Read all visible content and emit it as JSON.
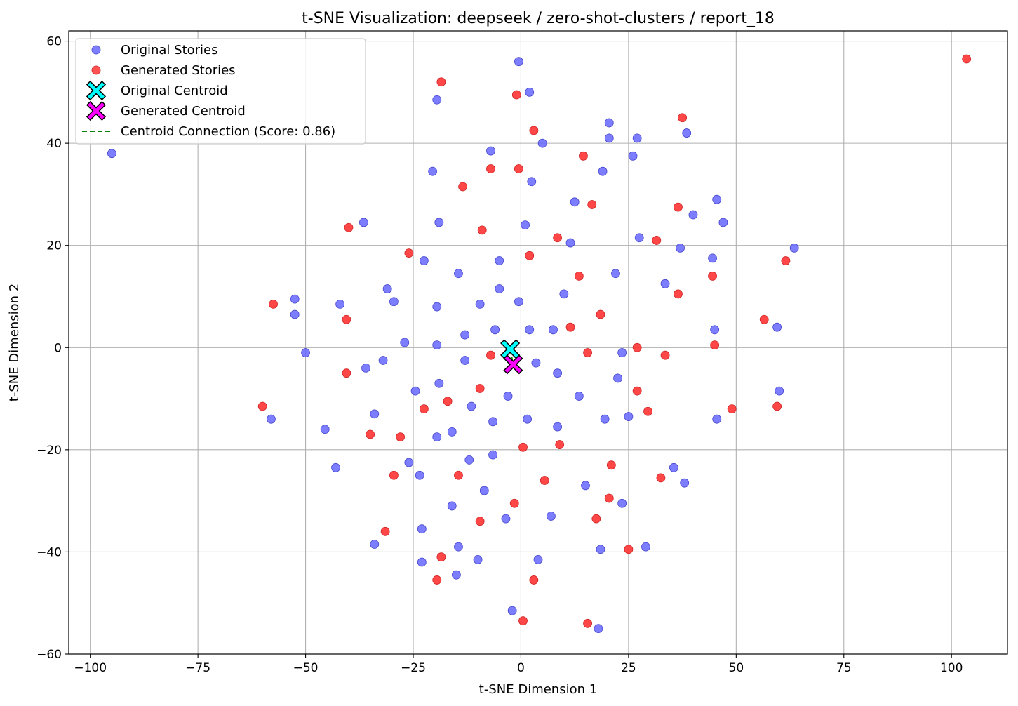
{
  "chart_data": {
    "type": "scatter",
    "title": "t-SNE Visualization: deepseek / zero-shot-clusters / report_18",
    "xlabel": "t-SNE Dimension 1",
    "ylabel": "t-SNE Dimension 2",
    "xlim": [
      -105,
      113
    ],
    "ylim": [
      -60,
      62
    ],
    "xticks": [
      -100,
      -75,
      -50,
      -25,
      0,
      25,
      50,
      75,
      100
    ],
    "yticks": [
      -60,
      -40,
      -20,
      0,
      20,
      40,
      60
    ],
    "xtick_labels": [
      "−100",
      "−75",
      "−50",
      "−25",
      "0",
      "25",
      "50",
      "75",
      "100"
    ],
    "ytick_labels": [
      "−60",
      "−40",
      "−20",
      "0",
      "20",
      "40",
      "60"
    ],
    "grid": true,
    "legend_position": "top-left",
    "colors": {
      "original": "#6666ff",
      "generated": "#ff3333",
      "original_centroid": "#00ffff",
      "generated_centroid": "#ff00ff",
      "connection": "#008000",
      "grid": "#b0b0b0"
    },
    "series": [
      {
        "name": "Original Stories",
        "marker": "circle",
        "points": [
          [
            -95,
            38
          ],
          [
            -0.5,
            56
          ],
          [
            2,
            50
          ],
          [
            -19.5,
            48.5
          ],
          [
            5,
            40
          ],
          [
            20.5,
            44
          ],
          [
            20.5,
            41
          ],
          [
            27,
            41
          ],
          [
            38.5,
            42
          ],
          [
            -7,
            38.5
          ],
          [
            26,
            37.5
          ],
          [
            -20.5,
            34.5
          ],
          [
            19,
            34.5
          ],
          [
            2.5,
            32.5
          ],
          [
            12.5,
            28.5
          ],
          [
            45.5,
            29
          ],
          [
            40,
            26
          ],
          [
            47,
            24.5
          ],
          [
            -36.5,
            24.5
          ],
          [
            -19,
            24.5
          ],
          [
            1,
            24
          ],
          [
            11.5,
            20.5
          ],
          [
            27.5,
            21.5
          ],
          [
            37,
            19.5
          ],
          [
            63.5,
            19.5
          ],
          [
            -22.5,
            17
          ],
          [
            -5,
            17
          ],
          [
            44.5,
            17.5
          ],
          [
            -14.5,
            14.5
          ],
          [
            22,
            14.5
          ],
          [
            33.5,
            12.5
          ],
          [
            -31,
            11.5
          ],
          [
            -5,
            11.5
          ],
          [
            10,
            10.5
          ],
          [
            -52.5,
            9.5
          ],
          [
            -42,
            8.5
          ],
          [
            -29.5,
            9
          ],
          [
            -9.5,
            8.5
          ],
          [
            -0.5,
            9
          ],
          [
            -19.5,
            8
          ],
          [
            -52.5,
            6.5
          ],
          [
            -6,
            3.5
          ],
          [
            2,
            3.5
          ],
          [
            7.5,
            3.5
          ],
          [
            45,
            3.5
          ],
          [
            59.5,
            4
          ],
          [
            -13,
            2.5
          ],
          [
            -27,
            1
          ],
          [
            -19.5,
            0.5
          ],
          [
            -50,
            -1
          ],
          [
            23.5,
            -1
          ],
          [
            -32,
            -2.5
          ],
          [
            -13,
            -2.5
          ],
          [
            3.5,
            -3
          ],
          [
            -36,
            -4
          ],
          [
            8.5,
            -5
          ],
          [
            22.5,
            -6
          ],
          [
            -19,
            -7
          ],
          [
            -24.5,
            -8.5
          ],
          [
            60,
            -8.5
          ],
          [
            -3,
            -9.5
          ],
          [
            13.5,
            -9.5
          ],
          [
            -11.5,
            -11.5
          ],
          [
            -34,
            -13
          ],
          [
            25,
            -13.5
          ],
          [
            -58,
            -14
          ],
          [
            1.5,
            -14
          ],
          [
            19.5,
            -14
          ],
          [
            45.5,
            -14
          ],
          [
            -6.5,
            -14.5
          ],
          [
            8.5,
            -15.5
          ],
          [
            -45.5,
            -16
          ],
          [
            -16,
            -16.5
          ],
          [
            -19.5,
            -17.5
          ],
          [
            -6.5,
            -21
          ],
          [
            -12,
            -22
          ],
          [
            -26,
            -22.5
          ],
          [
            35.5,
            -23.5
          ],
          [
            -43,
            -23.5
          ],
          [
            -23.5,
            -25
          ],
          [
            38,
            -26.5
          ],
          [
            15,
            -27
          ],
          [
            -8.5,
            -28
          ],
          [
            -16,
            -31
          ],
          [
            23.5,
            -30.5
          ],
          [
            7,
            -33
          ],
          [
            -3.5,
            -33.5
          ],
          [
            -23,
            -35.5
          ],
          [
            -34,
            -38.5
          ],
          [
            -14.5,
            -39
          ],
          [
            18.5,
            -39.5
          ],
          [
            29,
            -39
          ],
          [
            -23,
            -42
          ],
          [
            4,
            -41.5
          ],
          [
            -10,
            -41.5
          ],
          [
            -15,
            -44.5
          ],
          [
            -2,
            -51.5
          ],
          [
            18,
            -55
          ]
        ]
      },
      {
        "name": "Generated Stories",
        "marker": "circle",
        "points": [
          [
            103.5,
            56.5
          ],
          [
            -18.5,
            52
          ],
          [
            -1,
            49.5
          ],
          [
            37.5,
            45
          ],
          [
            3,
            42.5
          ],
          [
            14.5,
            37.5
          ],
          [
            -7,
            35
          ],
          [
            -0.5,
            35
          ],
          [
            -13.5,
            31.5
          ],
          [
            16.5,
            28
          ],
          [
            36.5,
            27.5
          ],
          [
            -40,
            23.5
          ],
          [
            -9,
            23
          ],
          [
            31.5,
            21
          ],
          [
            8.5,
            21.5
          ],
          [
            -26,
            18.5
          ],
          [
            2,
            18
          ],
          [
            61.5,
            17
          ],
          [
            13.5,
            14
          ],
          [
            44.5,
            14
          ],
          [
            36.5,
            10.5
          ],
          [
            -57.5,
            8.5
          ],
          [
            18.5,
            6.5
          ],
          [
            -40.5,
            5.5
          ],
          [
            56.5,
            5.5
          ],
          [
            11.5,
            4
          ],
          [
            27,
            0
          ],
          [
            45,
            0.5
          ],
          [
            15.5,
            -1
          ],
          [
            33.5,
            -1.5
          ],
          [
            -7,
            -1.5
          ],
          [
            -40.5,
            -5
          ],
          [
            -9.5,
            -8
          ],
          [
            27,
            -8.5
          ],
          [
            -17,
            -10.5
          ],
          [
            -60,
            -11.5
          ],
          [
            -22.5,
            -12
          ],
          [
            59.5,
            -11.5
          ],
          [
            49,
            -12
          ],
          [
            29.5,
            -12.5
          ],
          [
            -35,
            -17
          ],
          [
            -28,
            -17.5
          ],
          [
            9,
            -19
          ],
          [
            0.5,
            -19.5
          ],
          [
            21,
            -23
          ],
          [
            -14.5,
            -25
          ],
          [
            -29.5,
            -25
          ],
          [
            32.5,
            -25.5
          ],
          [
            5.5,
            -26
          ],
          [
            20.5,
            -29.5
          ],
          [
            -1.5,
            -30.5
          ],
          [
            17.5,
            -33.5
          ],
          [
            -9.5,
            -34
          ],
          [
            -31.5,
            -36
          ],
          [
            25,
            -39.5
          ],
          [
            -18.5,
            -41
          ],
          [
            -19.5,
            -45.5
          ],
          [
            3,
            -45.5
          ],
          [
            0.5,
            -53.5
          ],
          [
            15.5,
            -54
          ]
        ]
      },
      {
        "name": "Original Centroid",
        "marker": "x-filled",
        "points": [
          [
            -2.5,
            -0.3
          ]
        ]
      },
      {
        "name": "Generated Centroid",
        "marker": "x-filled",
        "points": [
          [
            -1.8,
            -3.3
          ]
        ]
      },
      {
        "name": "Centroid Connection (Score: 0.86)",
        "marker": "dashed-line",
        "points": [
          [
            -2.5,
            -0.3
          ],
          [
            -1.8,
            -3.3
          ]
        ]
      }
    ]
  }
}
